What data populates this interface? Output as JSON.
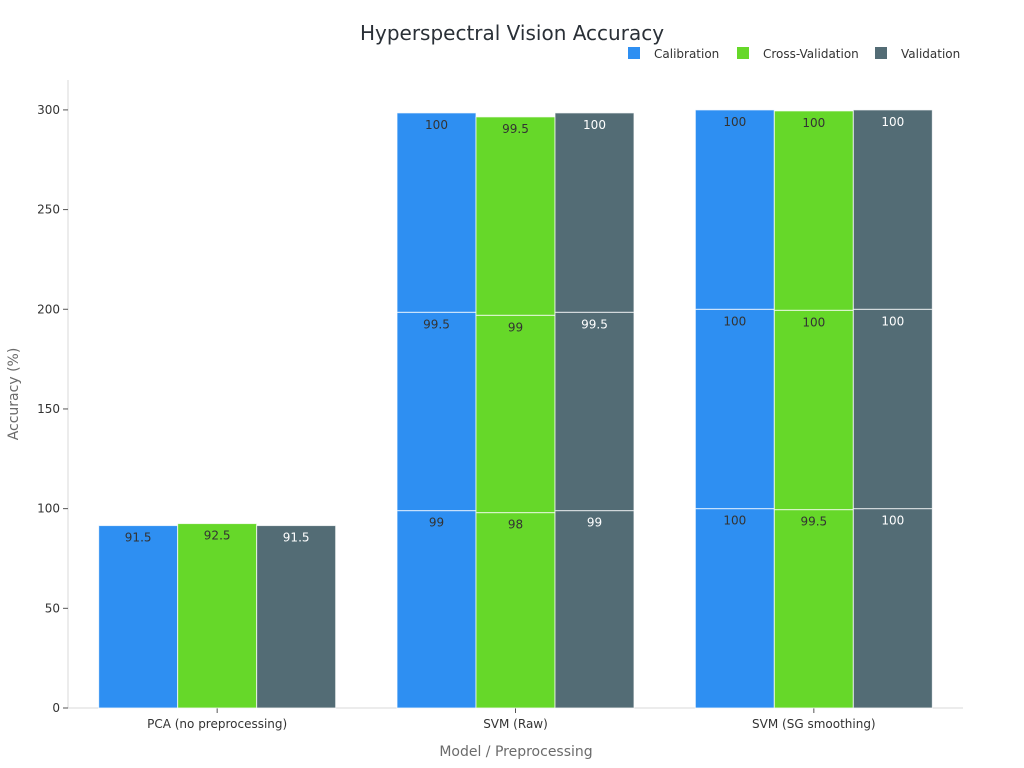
{
  "chart_data": {
    "type": "bar",
    "stacked": true,
    "title": "Hyperspectral Vision Accuracy",
    "xlabel": "Model / Preprocessing",
    "ylabel": "Accuracy (%)",
    "categories": [
      "PCA (no preprocessing)",
      "SVM (Raw)",
      "SVM (SG smoothing)"
    ],
    "ylim": [
      0,
      315
    ],
    "yticks": [
      0,
      50,
      100,
      150,
      200,
      250,
      300
    ],
    "grid": false,
    "legend_position": "top-right",
    "series": [
      {
        "name": "Calibration",
        "color": "#2e8ff2",
        "label_color": "#333333",
        "stacks": [
          [
            91.5
          ],
          [
            99,
            99.5,
            100
          ],
          [
            100,
            100,
            100
          ]
        ]
      },
      {
        "name": "Cross-Validation",
        "color": "#66d829",
        "label_color": "#333333",
        "stacks": [
          [
            92.5
          ],
          [
            98,
            99,
            99.5
          ],
          [
            99.5,
            100,
            100
          ]
        ]
      },
      {
        "name": "Validation",
        "color": "#536c75",
        "label_color": "#ffffff",
        "stacks": [
          [
            91.5
          ],
          [
            99,
            99.5,
            100
          ],
          [
            100,
            100,
            100
          ]
        ]
      }
    ]
  }
}
